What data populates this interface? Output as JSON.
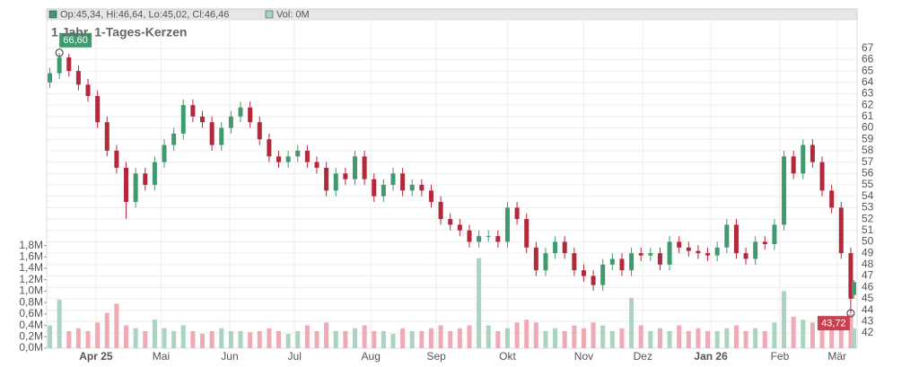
{
  "chart_data": {
    "type": "candlestick",
    "header": {
      "ohlc": "Op:45,34, Hi:46,64, Lo:45,02, Cl:46,46",
      "volume": "Vol: 0M"
    },
    "title": "1 Jahr, 1-Tages-Kerzen",
    "up_color": "#3f9a6e",
    "down_color": "#b3283b",
    "up_volume_color": "#a9d4bf",
    "down_volume_color": "#f0aab3",
    "xlim": [
      0,
      255
    ],
    "xticks": [
      {
        "value": 15.5,
        "label": "Apr 25"
      },
      {
        "value": 36,
        "label": "Mai"
      },
      {
        "value": 57.6,
        "label": "Jun"
      },
      {
        "value": 78,
        "label": "Jul"
      },
      {
        "value": 102,
        "label": "Aug"
      },
      {
        "value": 122.6,
        "label": "Sep"
      },
      {
        "value": 145,
        "label": "Okt"
      },
      {
        "value": 169,
        "label": "Nov"
      },
      {
        "value": 187.6,
        "label": "Dez"
      },
      {
        "value": 209,
        "label": "Jan 26"
      },
      {
        "value": 230.7,
        "label": "Feb"
      },
      {
        "value": 248.7,
        "label": "Mär"
      }
    ],
    "ylim": [
      40.66,
      69.5
    ],
    "yticks": [
      42,
      43,
      44,
      45,
      46,
      47,
      48,
      49,
      50,
      51,
      52,
      53,
      54,
      55,
      56,
      57,
      58,
      59,
      60,
      61,
      62,
      63,
      64,
      65,
      66,
      67
    ],
    "volume_lim": [
      0,
      5.76
    ],
    "volume_ticks": [
      {
        "value": 0,
        "label": "0,0M"
      },
      {
        "value": 0.2,
        "label": "0,2M"
      },
      {
        "value": 0.4,
        "label": "0,4M"
      },
      {
        "value": 0.6,
        "label": "0,6M"
      },
      {
        "value": 0.8,
        "label": "0,8M"
      },
      {
        "value": 1.0,
        "label": "1,0M"
      },
      {
        "value": 1.2,
        "label": "1,2M"
      },
      {
        "value": 1.4,
        "label": "1,4M"
      },
      {
        "value": 1.6,
        "label": "1,6M"
      },
      {
        "value": 1.8,
        "label": "1,8M"
      }
    ],
    "annotations": [
      {
        "x": 4,
        "value": 66.6,
        "label": "66,60",
        "color": "#3f9a6e"
      },
      {
        "x": 253,
        "value": 43.72,
        "label": "43,72",
        "color": "#c9414f"
      }
    ],
    "series": {
      "x": [
        1,
        4,
        7,
        10,
        13,
        16,
        19,
        22,
        25,
        28,
        31,
        34,
        37,
        40,
        43,
        46,
        49,
        52,
        55,
        58,
        61,
        64,
        67,
        70,
        73,
        76,
        79,
        82,
        85,
        88,
        91,
        94,
        97,
        100,
        103,
        106,
        109,
        112,
        115,
        118,
        121,
        124,
        127,
        130,
        133,
        136,
        139,
        142,
        145,
        148,
        151,
        154,
        157,
        160,
        163,
        166,
        169,
        172,
        175,
        178,
        181,
        184,
        187,
        190,
        193,
        196,
        199,
        202,
        205,
        208,
        211,
        214,
        217,
        220,
        223,
        226,
        229,
        232,
        235,
        238,
        241,
        244,
        247,
        250,
        253,
        254
      ],
      "open": [
        64.0,
        64.8,
        66.2,
        65.0,
        63.8,
        62.8,
        60.5,
        58.0,
        56.5,
        53.5,
        56.0,
        55.0,
        57.0,
        58.5,
        59.5,
        62.0,
        61.0,
        60.5,
        58.5,
        60.0,
        61.0,
        61.8,
        60.5,
        59.0,
        57.5,
        57.0,
        57.5,
        58.0,
        57.0,
        56.5,
        54.5,
        56.0,
        55.5,
        57.5,
        55.5,
        54.0,
        55.0,
        56.0,
        54.5,
        55.0,
        54.5,
        53.5,
        52.0,
        51.5,
        51.0,
        50.0,
        50.5,
        50.5,
        50.0,
        53.0,
        52.0,
        49.5,
        47.5,
        49.0,
        50.0,
        49.0,
        47.5,
        47.0,
        46.2,
        48.0,
        48.5,
        47.5,
        49.0,
        48.8,
        49.0,
        48.0,
        50.0,
        49.5,
        49.2,
        49.0,
        48.8,
        49.5,
        51.5,
        49.0,
        48.5,
        50.0,
        49.8,
        51.5,
        57.5,
        56.0,
        58.5,
        57.0,
        54.5,
        53.0,
        49.0,
        45.34
      ],
      "high": [
        65.3,
        66.6,
        66.5,
        65.5,
        64.3,
        63.3,
        61.0,
        58.5,
        57.0,
        56.5,
        56.5,
        57.5,
        59.0,
        60.0,
        62.5,
        62.5,
        61.5,
        61.0,
        60.5,
        61.5,
        62.3,
        62.3,
        61.0,
        59.5,
        58.0,
        58.0,
        58.5,
        58.5,
        57.5,
        57.0,
        56.5,
        56.5,
        58.0,
        58.0,
        56.0,
        55.5,
        56.5,
        56.5,
        55.5,
        55.5,
        55.0,
        54.0,
        52.5,
        52.0,
        51.5,
        51.0,
        51.0,
        51.0,
        53.5,
        53.5,
        52.5,
        50.0,
        49.5,
        50.5,
        50.5,
        49.5,
        48.0,
        47.5,
        48.5,
        49.0,
        49.0,
        49.5,
        49.5,
        49.5,
        49.5,
        50.5,
        50.5,
        50.0,
        49.7,
        49.5,
        50.0,
        52.0,
        52.0,
        49.5,
        50.5,
        50.5,
        52.0,
        58.0,
        58.0,
        59.0,
        59.0,
        57.5,
        55.0,
        53.5,
        49.5,
        46.64
      ],
      "low": [
        63.5,
        64.3,
        64.5,
        63.3,
        62.3,
        60.0,
        57.5,
        56.0,
        52.0,
        53.0,
        54.5,
        54.5,
        56.5,
        58.0,
        59.0,
        60.5,
        60.0,
        58.0,
        58.0,
        59.5,
        60.5,
        60.0,
        58.5,
        57.0,
        56.5,
        56.5,
        57.0,
        56.5,
        56.0,
        54.0,
        54.0,
        55.0,
        55.0,
        55.0,
        53.5,
        53.5,
        54.5,
        54.0,
        54.0,
        54.0,
        53.0,
        51.5,
        51.0,
        50.5,
        49.5,
        49.5,
        50.0,
        49.5,
        49.5,
        51.5,
        49.0,
        47.0,
        47.0,
        48.5,
        48.5,
        47.0,
        46.5,
        45.7,
        45.7,
        47.5,
        47.0,
        47.0,
        48.3,
        48.3,
        47.5,
        47.5,
        49.0,
        48.7,
        48.5,
        48.3,
        48.3,
        49.0,
        48.5,
        48.0,
        48.0,
        49.3,
        49.3,
        51.0,
        55.5,
        55.5,
        56.5,
        54.0,
        52.5,
        48.5,
        43.72,
        45.02
      ],
      "close": [
        64.8,
        66.2,
        65.0,
        63.8,
        62.8,
        60.5,
        58.0,
        56.5,
        53.5,
        56.0,
        55.0,
        57.0,
        58.5,
        59.5,
        62.0,
        61.0,
        60.5,
        58.5,
        60.0,
        61.0,
        61.8,
        60.5,
        59.0,
        57.5,
        57.0,
        57.5,
        58.0,
        57.0,
        56.5,
        54.5,
        56.0,
        55.5,
        57.5,
        55.5,
        54.0,
        55.0,
        56.0,
        54.5,
        55.0,
        54.5,
        53.5,
        52.0,
        51.5,
        51.0,
        50.0,
        50.5,
        50.5,
        50.0,
        53.0,
        52.0,
        49.5,
        47.5,
        49.0,
        50.0,
        49.0,
        47.5,
        47.0,
        46.2,
        48.0,
        48.5,
        47.5,
        49.0,
        48.8,
        49.0,
        48.0,
        50.0,
        49.5,
        49.2,
        49.0,
        48.8,
        49.5,
        51.5,
        49.0,
        48.5,
        50.0,
        49.8,
        51.5,
        57.5,
        56.0,
        58.5,
        57.0,
        54.5,
        53.0,
        49.0,
        45.0,
        46.46
      ],
      "volume": [
        0.4,
        0.85,
        0.3,
        0.35,
        0.3,
        0.45,
        0.62,
        0.78,
        0.4,
        0.35,
        0.3,
        0.5,
        0.35,
        0.3,
        0.4,
        0.3,
        0.25,
        0.3,
        0.35,
        0.3,
        0.3,
        0.28,
        0.3,
        0.35,
        0.3,
        0.25,
        0.3,
        0.4,
        0.3,
        0.45,
        0.3,
        0.3,
        0.35,
        0.4,
        0.3,
        0.3,
        0.25,
        0.35,
        0.3,
        0.3,
        0.35,
        0.4,
        0.3,
        0.35,
        0.4,
        1.58,
        0.4,
        0.3,
        0.35,
        0.45,
        0.5,
        0.45,
        0.3,
        0.35,
        0.3,
        0.4,
        0.35,
        0.45,
        0.4,
        0.3,
        0.35,
        0.88,
        0.4,
        0.3,
        0.35,
        0.3,
        0.4,
        0.3,
        0.35,
        0.3,
        0.3,
        0.35,
        0.4,
        0.3,
        0.35,
        0.3,
        0.45,
        1.0,
        0.55,
        0.5,
        0.45,
        0.4,
        0.5,
        0.45,
        0.6,
        0.35
      ]
    }
  }
}
